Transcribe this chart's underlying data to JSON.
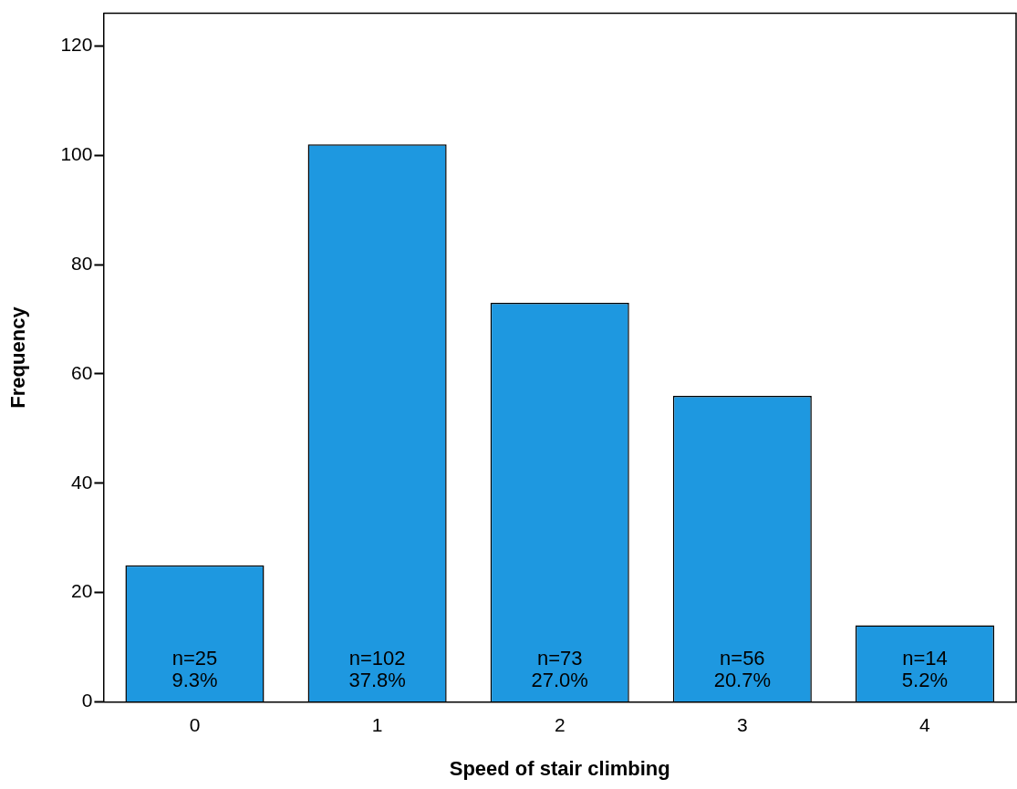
{
  "chart_data": {
    "type": "bar",
    "xlabel": "Speed of stair climbing",
    "ylabel": "Frequency",
    "categories": [
      "0",
      "1",
      "2",
      "3",
      "4"
    ],
    "values": [
      25,
      102,
      73,
      56,
      14
    ],
    "value_labels": [
      "n=25\n9.3%",
      "n=102\n37.8%",
      "n=73\n27.0%",
      "n=56\n20.7%",
      "n=14\n5.2%"
    ],
    "color": "#1e98e0",
    "ylim": [
      0,
      126
    ],
    "yticks": [
      0,
      20,
      40,
      60,
      80,
      100,
      120
    ],
    "grid": false,
    "legend": false
  }
}
